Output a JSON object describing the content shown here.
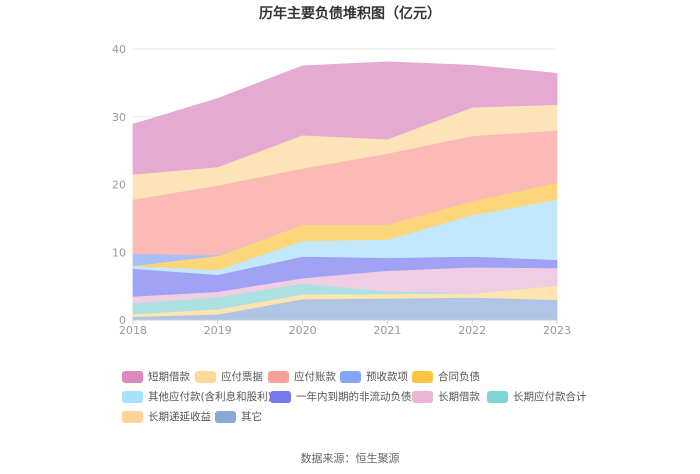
{
  "chart_data": {
    "type": "area",
    "stacked": true,
    "title": "历年主要负债堆积图（亿元）",
    "categories": [
      "2018",
      "2019",
      "2020",
      "2021",
      "2022",
      "2023"
    ],
    "ylim": [
      0,
      40
    ],
    "yticks": [
      "0",
      "10",
      "20",
      "30",
      "40"
    ],
    "grid": true,
    "legend_position": "bottom",
    "series": [
      {
        "name": "其它",
        "color": "#8aaad6",
        "fill": "#b0c4e3",
        "values": [
          0.5,
          0.85,
          3.1,
          3.2,
          3.35,
          3.0
        ]
      },
      {
        "name": "长期递延收益",
        "color": "#fed49b",
        "fill": "#fde4b0",
        "values": [
          0.4,
          0.75,
          0.7,
          0.65,
          0.6,
          2.1
        ]
      },
      {
        "name": "长期应付款合计",
        "color": "#7fd5d5",
        "fill": "#abe2e1",
        "values": [
          1.6,
          1.8,
          1.6,
          0.4,
          0.05,
          0
        ]
      },
      {
        "name": "长期借款",
        "color": "#e9b6d7",
        "fill": "#efcde3",
        "values": [
          1.0,
          0.8,
          0.8,
          3.05,
          3.8,
          2.6
        ]
      },
      {
        "name": "一年内到期的非流动负债",
        "color": "#7679ec",
        "fill": "#a0a3f5",
        "values": [
          4.1,
          2.5,
          3.2,
          1.9,
          1.6,
          1.2
        ]
      },
      {
        "name": "其他应付款(含利息和股利)",
        "color": "#a9e1fb",
        "fill": "#c3e8fb",
        "values": [
          0.4,
          0.7,
          2.3,
          2.7,
          6.1,
          8.9
        ]
      },
      {
        "name": "合同负债",
        "color": "#fbc441",
        "fill": "#fdd57b",
        "values": [
          0,
          2.1,
          2.4,
          2.2,
          2.1,
          2.5
        ]
      },
      {
        "name": "预收款项",
        "color": "#85a5f8",
        "fill": "#a8c0f7",
        "values": [
          1.8,
          0.1,
          0,
          0,
          0,
          0
        ]
      },
      {
        "name": "应付账款",
        "color": "#f8a198",
        "fill": "#fbbab6",
        "values": [
          8.0,
          10.3,
          8.3,
          10.5,
          9.6,
          7.7
        ]
      },
      {
        "name": "应付票据",
        "color": "#fed89a",
        "fill": "#fde4b8",
        "values": [
          3.7,
          2.7,
          4.9,
          2.1,
          4.2,
          3.8
        ]
      },
      {
        "name": "短期借款",
        "color": "#de88c0",
        "fill": "#e4aad1",
        "values": [
          7.4,
          10.1,
          10.2,
          11.4,
          6.2,
          4.6
        ]
      }
    ]
  },
  "legend_order": [
    10,
    9,
    8,
    7,
    6,
    5,
    4,
    3,
    2,
    1,
    0
  ],
  "source": "数据来源：恒生聚源"
}
